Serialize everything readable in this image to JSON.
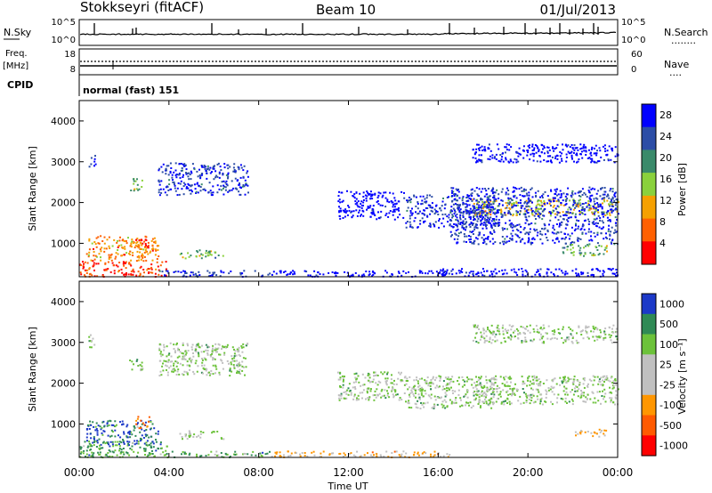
{
  "header": {
    "title": "Stokkseyri (fitACF)",
    "beam": "Beam 10",
    "date": "01/Jul/2013"
  },
  "noise_panel": {
    "left_label": "N.Sky",
    "left_ticks": [
      "10^5",
      "10^0"
    ],
    "right_ticks": [
      "10^5",
      "10^0"
    ],
    "right_label": "N.Search",
    "right_line": "........"
  },
  "freq_panel": {
    "left_label_1": "Freq.",
    "left_label_2": "[MHz]",
    "left_ticks": [
      "18",
      "8"
    ],
    "right_ticks": [
      "60",
      "0"
    ],
    "right_label": "Nave",
    "right_line": "...."
  },
  "cpid_panel": {
    "label": "CPID",
    "text": "normal (fast) 151"
  },
  "colors": {
    "noise_line": "#000000",
    "background": "#ffffff",
    "ground_scatter": "#c0c0c0"
  },
  "chart_data": [
    {
      "type": "heatmap",
      "name": "power",
      "ylabel": "Slant Range [km]",
      "yticks": [
        "1000",
        "2000",
        "3000",
        "4000"
      ],
      "ylim": [
        180,
        4500
      ],
      "xlim": [
        0,
        24
      ],
      "colorbar_title": "Power [dB]",
      "colorbar_ticks": [
        "4",
        "8",
        "12",
        "16",
        "20",
        "24",
        "28"
      ],
      "colorbar_colors": [
        "#0000ff",
        "#2c4da6",
        "#3a8a6a",
        "#8ad13c",
        "#f5a000",
        "#ff6000",
        "#ff0000"
      ],
      "scatter_regions": [
        {
          "t": [
            0.0,
            3.9
          ],
          "r": [
            200,
            600
          ],
          "level": 6
        },
        {
          "t": [
            0.3,
            3.5
          ],
          "r": [
            600,
            1200
          ],
          "level": 5
        },
        {
          "t": [
            2.5,
            3.1
          ],
          "r": [
            900,
            1200
          ],
          "level": 6
        },
        {
          "t": [
            4.4,
            6.4
          ],
          "r": [
            650,
            850
          ],
          "level": 3
        },
        {
          "t": [
            3.5,
            7.5
          ],
          "r": [
            2200,
            3000
          ],
          "level": 1
        },
        {
          "t": [
            0.4,
            0.7
          ],
          "r": [
            2900,
            3200
          ],
          "level": 1
        },
        {
          "t": [
            2.2,
            2.8
          ],
          "r": [
            2300,
            2600
          ],
          "level": 3
        },
        {
          "t": [
            3.5,
            8.5
          ],
          "r": [
            200,
            350
          ],
          "level": 1
        },
        {
          "t": [
            8.5,
            16.5
          ],
          "r": [
            200,
            350
          ],
          "level": 0
        },
        {
          "t": [
            11.5,
            14.5
          ],
          "r": [
            1600,
            2300
          ],
          "level": 0
        },
        {
          "t": [
            14.5,
            18.5
          ],
          "r": [
            1400,
            2200
          ],
          "level": 1
        },
        {
          "t": [
            17.5,
            24.0
          ],
          "r": [
            1700,
            2100
          ],
          "level": 4
        },
        {
          "t": [
            16.5,
            24.0
          ],
          "r": [
            1000,
            2400
          ],
          "level": 1
        },
        {
          "t": [
            17.5,
            24.0
          ],
          "r": [
            3000,
            3450
          ],
          "level": 0
        },
        {
          "t": [
            21.5,
            23.5
          ],
          "r": [
            700,
            1000
          ],
          "level": 3
        },
        {
          "t": [
            16.0,
            24.0
          ],
          "r": [
            200,
            400
          ],
          "level": 0
        }
      ]
    },
    {
      "type": "heatmap",
      "name": "velocity",
      "ylabel": "Slant Range [km]",
      "yticks": [
        "1000",
        "2000",
        "3000",
        "4000"
      ],
      "ylim": [
        180,
        4500
      ],
      "xlim": [
        0,
        24
      ],
      "xlabel": "Time UT",
      "xticks": [
        "00:00",
        "04:00",
        "08:00",
        "12:00",
        "16:00",
        "20:00",
        "00:00"
      ],
      "colorbar_title": "Velocity [m s⁻¹]",
      "colorbar_ticks": [
        "1000",
        "500",
        "100",
        "25",
        "-25",
        "-100",
        "-500",
        "-1000"
      ],
      "colorbar_colors": [
        "#1c39c8",
        "#2f8a55",
        "#6cc23a",
        "#c0c0c0",
        "#c0c0c0",
        "#ff9600",
        "#ff5a00",
        "#ff0000"
      ],
      "scatter_regions": [
        {
          "t": [
            0.0,
            3.9
          ],
          "r": [
            200,
            600
          ],
          "level": 2
        },
        {
          "t": [
            0.3,
            3.5
          ],
          "r": [
            500,
            1100
          ],
          "level": 1
        },
        {
          "t": [
            2.5,
            3.1
          ],
          "r": [
            900,
            1200
          ],
          "level": 6
        },
        {
          "t": [
            4.4,
            6.4
          ],
          "r": [
            650,
            850
          ],
          "level": 3
        },
        {
          "t": [
            3.5,
            7.5
          ],
          "r": [
            2200,
            3000
          ],
          "level": 3
        },
        {
          "t": [
            2.2,
            2.8
          ],
          "r": [
            2300,
            2600
          ],
          "level": 3
        },
        {
          "t": [
            0.4,
            0.7
          ],
          "r": [
            2900,
            3200
          ],
          "level": 3
        },
        {
          "t": [
            3.5,
            8.5
          ],
          "r": [
            200,
            350
          ],
          "level": 2
        },
        {
          "t": [
            8.5,
            16.5
          ],
          "r": [
            200,
            350
          ],
          "level": 5
        },
        {
          "t": [
            11.5,
            14.5
          ],
          "r": [
            1600,
            2300
          ],
          "level": 3
        },
        {
          "t": [
            14.5,
            18.5
          ],
          "r": [
            1400,
            2200
          ],
          "level": 3
        },
        {
          "t": [
            17.5,
            24.0
          ],
          "r": [
            1500,
            2200
          ],
          "level": 3
        },
        {
          "t": [
            17.5,
            24.0
          ],
          "r": [
            3000,
            3450
          ],
          "level": 3
        },
        {
          "t": [
            22.0,
            23.5
          ],
          "r": [
            700,
            900
          ],
          "level": 5
        }
      ]
    }
  ]
}
